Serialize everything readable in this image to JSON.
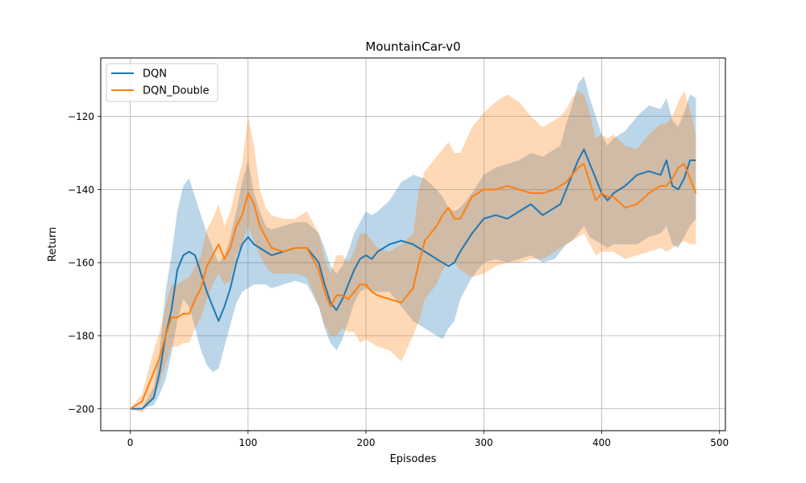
{
  "chart_data": {
    "type": "line",
    "title": "MountainCar-v0",
    "xlabel": "Episodes",
    "ylabel": "Return",
    "xlim": [
      -25,
      505
    ],
    "ylim": [
      -206,
      -104
    ],
    "xticks": [
      0,
      100,
      200,
      300,
      400,
      500
    ],
    "yticks": [
      -200,
      -180,
      -160,
      -140,
      -120
    ],
    "grid": true,
    "legend_position": "top-left",
    "series": [
      {
        "name": "DQN",
        "color": "#1f77b4",
        "x": [
          0,
          10,
          20,
          25,
          30,
          35,
          40,
          45,
          50,
          55,
          60,
          65,
          70,
          75,
          80,
          85,
          90,
          95,
          100,
          105,
          110,
          115,
          120,
          130,
          140,
          150,
          160,
          165,
          170,
          175,
          180,
          185,
          190,
          195,
          200,
          205,
          210,
          220,
          230,
          240,
          250,
          260,
          265,
          270,
          275,
          280,
          290,
          300,
          310,
          320,
          330,
          340,
          350,
          360,
          365,
          370,
          375,
          380,
          385,
          390,
          395,
          400,
          405,
          410,
          420,
          430,
          440,
          450,
          455,
          460,
          465,
          470,
          475,
          480
        ],
        "y": [
          -200,
          -200,
          -197,
          -190,
          -180,
          -173,
          -162,
          -158,
          -157,
          -158,
          -163,
          -168,
          -172,
          -176,
          -172,
          -167,
          -160,
          -155,
          -153,
          -155,
          -156,
          -157,
          -158,
          -157,
          -156,
          -156,
          -160,
          -166,
          -171,
          -173,
          -170,
          -166,
          -162,
          -159,
          -158,
          -159,
          -157,
          -155,
          -154,
          -155,
          -157,
          -159,
          -160,
          -161,
          -160,
          -157,
          -152,
          -148,
          -147,
          -148,
          -146,
          -144,
          -147,
          -145,
          -144,
          -140,
          -136,
          -132,
          -129,
          -133,
          -137,
          -141,
          -143,
          -141,
          -139,
          -136,
          -135,
          -136,
          -132,
          -139,
          -140,
          -137,
          -132,
          -132
        ],
        "lower": [
          -200,
          -200,
          -199,
          -196,
          -192,
          -185,
          -176,
          -170,
          -172,
          -178,
          -184,
          -188,
          -190,
          -189,
          -183,
          -177,
          -171,
          -168,
          -167,
          -166,
          -166,
          -166,
          -167,
          -166,
          -165,
          -166,
          -172,
          -178,
          -182,
          -184,
          -181,
          -176,
          -171,
          -168,
          -167,
          -168,
          -168,
          -168,
          -172,
          -176,
          -178,
          -180,
          -181,
          -178,
          -176,
          -170,
          -164,
          -160,
          -159,
          -160,
          -159,
          -158,
          -160,
          -159,
          -157,
          -155,
          -154,
          -152,
          -150,
          -153,
          -154,
          -155,
          -156,
          -155,
          -155,
          -155,
          -153,
          -152,
          -150,
          -155,
          -156,
          -153,
          -150,
          -148
        ],
        "upper": [
          -200,
          -200,
          -194,
          -184,
          -168,
          -158,
          -146,
          -139,
          -137,
          -142,
          -147,
          -152,
          -156,
          -160,
          -158,
          -153,
          -146,
          -138,
          -132,
          -141,
          -146,
          -150,
          -151,
          -150,
          -149,
          -149,
          -152,
          -156,
          -161,
          -163,
          -161,
          -157,
          -152,
          -149,
          -146,
          -147,
          -146,
          -143,
          -138,
          -136,
          -137,
          -140,
          -142,
          -145,
          -146,
          -145,
          -141,
          -136,
          -134,
          -133,
          -132,
          -130,
          -131,
          -129,
          -128,
          -122,
          -117,
          -111,
          -109,
          -115,
          -120,
          -125,
          -128,
          -126,
          -124,
          -120,
          -117,
          -118,
          -115,
          -121,
          -123,
          -119,
          -114,
          -115
        ]
      },
      {
        "name": "DQN_Double",
        "color": "#ff7f0e",
        "x": [
          0,
          10,
          20,
          25,
          30,
          35,
          40,
          45,
          50,
          55,
          60,
          65,
          70,
          75,
          80,
          85,
          90,
          95,
          100,
          105,
          110,
          115,
          120,
          130,
          140,
          150,
          160,
          165,
          170,
          175,
          180,
          185,
          190,
          195,
          200,
          205,
          210,
          220,
          230,
          240,
          245,
          250,
          260,
          265,
          270,
          275,
          280,
          290,
          300,
          310,
          320,
          330,
          340,
          350,
          360,
          365,
          370,
          375,
          380,
          385,
          390,
          395,
          400,
          405,
          410,
          420,
          430,
          440,
          450,
          455,
          460,
          465,
          470,
          475,
          480
        ],
        "y": [
          -200,
          -198,
          -190,
          -186,
          -180,
          -175,
          -175,
          -174,
          -174,
          -170,
          -167,
          -161,
          -158,
          -155,
          -159,
          -156,
          -150,
          -147,
          -141,
          -144,
          -150,
          -153,
          -156,
          -157,
          -156,
          -156,
          -162,
          -168,
          -172,
          -169,
          -169,
          -170,
          -168,
          -166,
          -166,
          -168,
          -169,
          -170,
          -171,
          -167,
          -160,
          -154,
          -150,
          -147,
          -145,
          -148,
          -148,
          -142,
          -140,
          -140,
          -139,
          -140,
          -141,
          -141,
          -140,
          -139,
          -138,
          -136,
          -134,
          -133,
          -138,
          -143,
          -141,
          -142,
          -142,
          -145,
          -144,
          -141,
          -139,
          -139,
          -137,
          -134,
          -133,
          -137,
          -141
        ],
        "lower": [
          -200,
          -201,
          -197,
          -193,
          -188,
          -183,
          -183,
          -182,
          -182,
          -178,
          -175,
          -170,
          -166,
          -163,
          -166,
          -165,
          -158,
          -155,
          -150,
          -154,
          -158,
          -161,
          -163,
          -163,
          -163,
          -164,
          -172,
          -177,
          -180,
          -180,
          -178,
          -179,
          -179,
          -182,
          -181,
          -182,
          -183,
          -184,
          -187,
          -180,
          -176,
          -170,
          -166,
          -162,
          -160,
          -160,
          -162,
          -164,
          -163,
          -161,
          -160,
          -160,
          -159,
          -159,
          -157,
          -156,
          -155,
          -154,
          -153,
          -152,
          -155,
          -158,
          -157,
          -157,
          -157,
          -159,
          -158,
          -157,
          -156,
          -157,
          -156,
          -155,
          -154,
          -155,
          -155
        ],
        "upper": [
          -200,
          -196,
          -184,
          -179,
          -172,
          -166,
          -166,
          -165,
          -164,
          -161,
          -158,
          -151,
          -148,
          -144,
          -150,
          -146,
          -139,
          -133,
          -120,
          -128,
          -140,
          -145,
          -147,
          -148,
          -148,
          -146,
          -152,
          -159,
          -163,
          -158,
          -158,
          -160,
          -157,
          -152,
          -152,
          -154,
          -156,
          -157,
          -155,
          -152,
          -140,
          -135,
          -131,
          -129,
          -127,
          -130,
          -130,
          -123,
          -119,
          -116,
          -114,
          -116,
          -120,
          -123,
          -121,
          -120,
          -118,
          -115,
          -113,
          -114,
          -119,
          -126,
          -125,
          -126,
          -125,
          -128,
          -129,
          -125,
          -122,
          -122,
          -120,
          -116,
          -113,
          -118,
          -125
        ]
      }
    ]
  }
}
